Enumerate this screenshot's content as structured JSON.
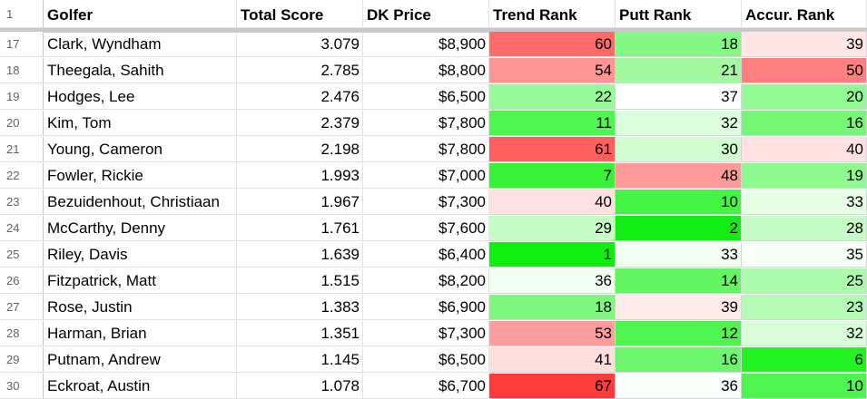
{
  "header": {
    "rownum": "1",
    "columns": [
      "Golfer",
      "Total Score",
      "DK Price",
      "Trend Rank",
      "Putt Rank",
      "Accur. Rank"
    ]
  },
  "rows": [
    {
      "rownum": "17",
      "golfer": "Clark, Wyndham",
      "total_score": "3.079",
      "dk_price": "$8,900",
      "trend_rank": "60",
      "putt_rank": "18",
      "accur_rank": "39"
    },
    {
      "rownum": "18",
      "golfer": "Theegala, Sahith",
      "total_score": "2.785",
      "dk_price": "$8,800",
      "trend_rank": "54",
      "putt_rank": "21",
      "accur_rank": "50"
    },
    {
      "rownum": "19",
      "golfer": "Hodges, Lee",
      "total_score": "2.476",
      "dk_price": "$6,500",
      "trend_rank": "22",
      "putt_rank": "37",
      "accur_rank": "20"
    },
    {
      "rownum": "20",
      "golfer": "Kim, Tom",
      "total_score": "2.379",
      "dk_price": "$7,800",
      "trend_rank": "11",
      "putt_rank": "32",
      "accur_rank": "16"
    },
    {
      "rownum": "21",
      "golfer": "Young, Cameron",
      "total_score": "2.198",
      "dk_price": "$7,800",
      "trend_rank": "61",
      "putt_rank": "30",
      "accur_rank": "40"
    },
    {
      "rownum": "22",
      "golfer": "Fowler, Rickie",
      "total_score": "1.993",
      "dk_price": "$7,000",
      "trend_rank": "7",
      "putt_rank": "48",
      "accur_rank": "19"
    },
    {
      "rownum": "23",
      "golfer": "Bezuidenhout, Christiaan",
      "total_score": "1.967",
      "dk_price": "$7,300",
      "trend_rank": "40",
      "putt_rank": "10",
      "accur_rank": "33"
    },
    {
      "rownum": "24",
      "golfer": "McCarthy, Denny",
      "total_score": "1.761",
      "dk_price": "$7,600",
      "trend_rank": "29",
      "putt_rank": "2",
      "accur_rank": "28"
    },
    {
      "rownum": "25",
      "golfer": "Riley, Davis",
      "total_score": "1.639",
      "dk_price": "$6,400",
      "trend_rank": "1",
      "putt_rank": "33",
      "accur_rank": "35"
    },
    {
      "rownum": "26",
      "golfer": "Fitzpatrick, Matt",
      "total_score": "1.515",
      "dk_price": "$8,200",
      "trend_rank": "36",
      "putt_rank": "14",
      "accur_rank": "25"
    },
    {
      "rownum": "27",
      "golfer": "Rose, Justin",
      "total_score": "1.383",
      "dk_price": "$6,900",
      "trend_rank": "18",
      "putt_rank": "39",
      "accur_rank": "23"
    },
    {
      "rownum": "28",
      "golfer": "Harman, Brian",
      "total_score": "1.351",
      "dk_price": "$7,300",
      "trend_rank": "53",
      "putt_rank": "12",
      "accur_rank": "32"
    },
    {
      "rownum": "29",
      "golfer": "Putnam, Andrew",
      "total_score": "1.145",
      "dk_price": "$6,500",
      "trend_rank": "41",
      "putt_rank": "16",
      "accur_rank": "6"
    },
    {
      "rownum": "30",
      "golfer": "Eckroat, Austin",
      "total_score": "1.078",
      "dk_price": "$6,700",
      "trend_rank": "67",
      "putt_rank": "36",
      "accur_rank": "10"
    }
  ],
  "cell_colors": {
    "trend_rank": [
      "#ff6a6a",
      "#ff9494",
      "#98f998",
      "#51f551",
      "#ff5f5f",
      "#37f237",
      "#ffe1e1",
      "#c7fcc7",
      "#0fee0f",
      "#f4fff4",
      "#7ef77e",
      "#ff9c9c",
      "#ffdede",
      "#ff3b3b"
    ],
    "putt_rank": [
      "#84f884",
      "#a2f9a2",
      "#ffffff",
      "#ddfedd",
      "#d2fcd2",
      "#ff9a9a",
      "#44f444",
      "#13ec13",
      "#f3fff3",
      "#63f563",
      "#ffeaea",
      "#50f350",
      "#6df66d",
      "#fbfffb"
    ],
    "accur_rank": [
      "#ffe6e6",
      "#ff8080",
      "#93fa93",
      "#76f776",
      "#ffe1e1",
      "#8ef98e",
      "#e6fee6",
      "#c6fcc6",
      "#f7fff7",
      "#acfaac",
      "#b5fbb5",
      "#d9fdd9",
      "#22f122",
      "#50f450"
    ]
  }
}
